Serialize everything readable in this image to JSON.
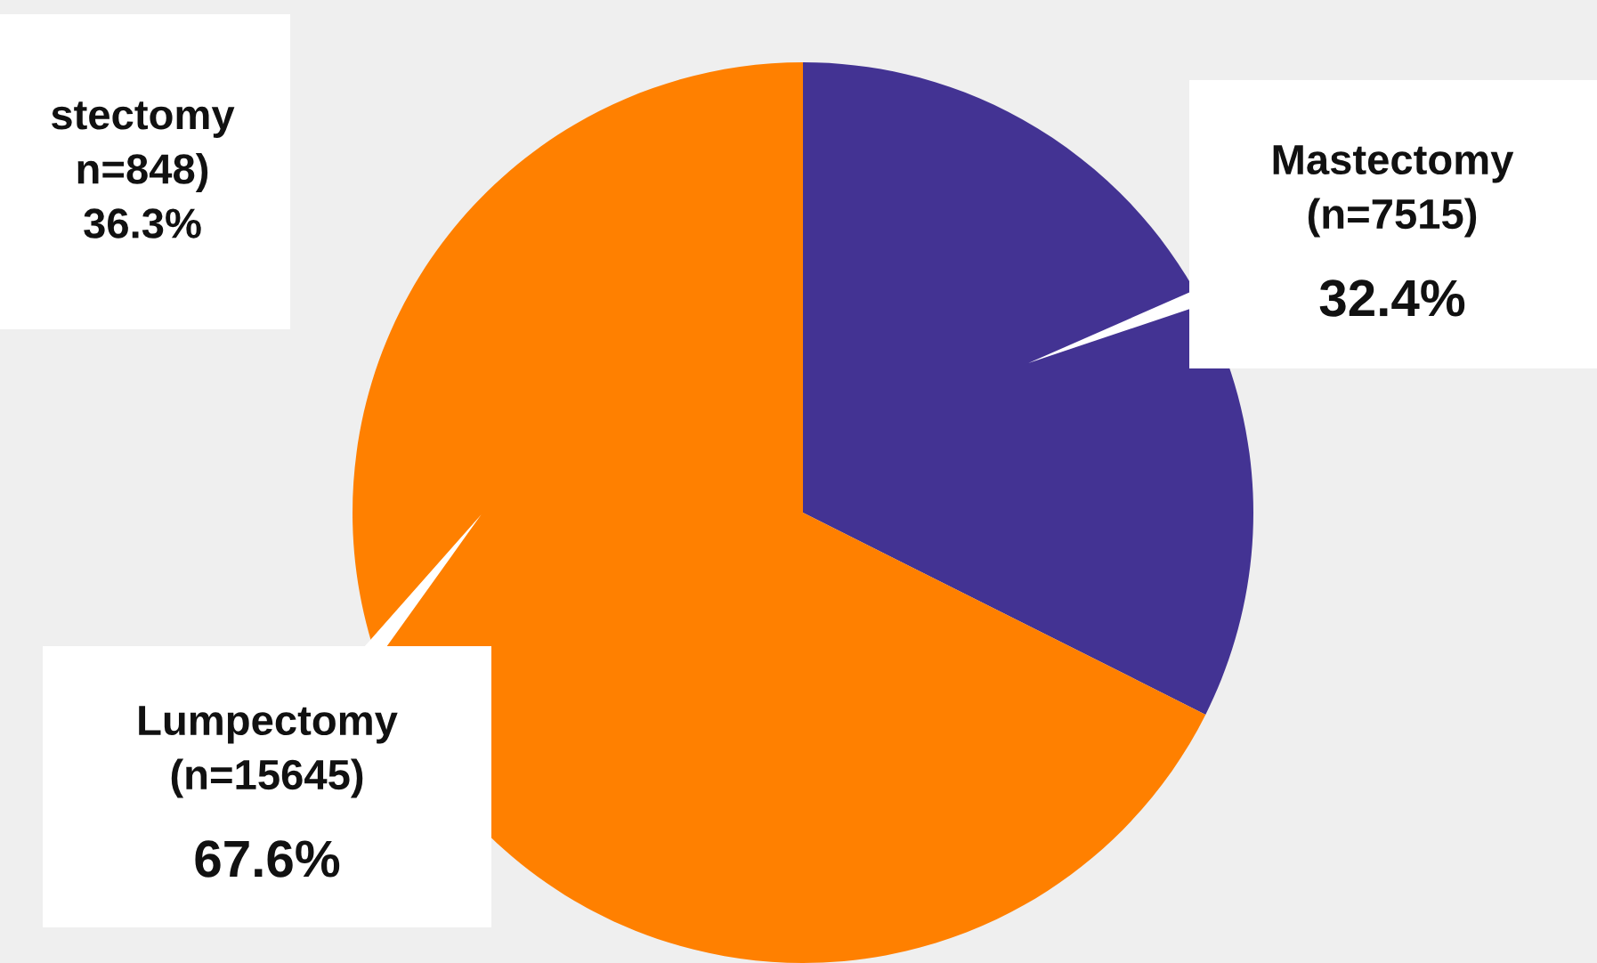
{
  "chart_data": {
    "type": "pie",
    "categories": [
      "Mastectomy\n(n=7515)",
      "Lumpectomy\n(n=15645)"
    ],
    "values": [
      32.4,
      67.6
    ],
    "value_labels": [
      "32.4%",
      "67.6%"
    ],
    "colors": [
      "#433393",
      "#ff8000"
    ],
    "annotations": [
      "stectomy\nn=848)\n36.3%"
    ]
  }
}
